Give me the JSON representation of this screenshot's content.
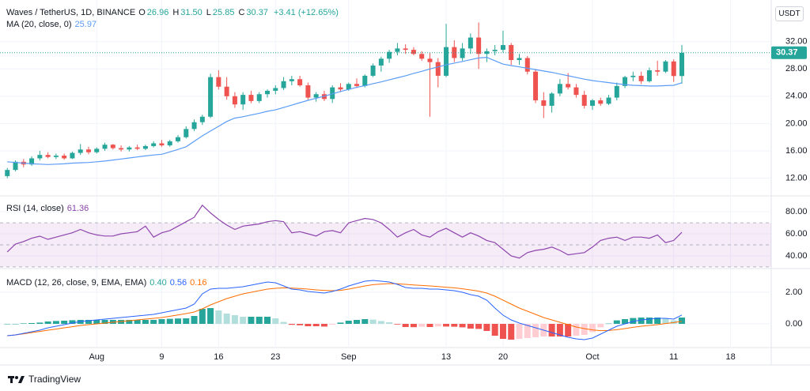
{
  "toolbar": {
    "currency": "USDT"
  },
  "footer": {
    "brand": "TradingView"
  },
  "chart_data": [
    {
      "type": "candlestick",
      "title": "Waves / TetherUS, 1D, BINANCE",
      "ohlc": [
        {
          "key": "O",
          "value": "26.96"
        },
        {
          "key": "H",
          "value": "31.50"
        },
        {
          "key": "L",
          "value": "25.85"
        },
        {
          "key": "C",
          "value": "30.37"
        }
      ],
      "change": "+3.41 (+12.65%)",
      "up_color": "#26a69a",
      "down_color": "#ef5350",
      "open": [
        12.3,
        13.2,
        14.4,
        14.0,
        14.9,
        15.4,
        15.1,
        15.3,
        14.9,
        15.7,
        16.2,
        15.8,
        16.3,
        16.9,
        16.4,
        16.2,
        16.5,
        16.3,
        16.7,
        17.1,
        16.8,
        17.4,
        18.0,
        19.2,
        20.2,
        21.0,
        26.8,
        25.4,
        24.0,
        22.8,
        24.2,
        23.3,
        24.3,
        24.8,
        25.2,
        26.2,
        26.5,
        25.6,
        23.8,
        24.3,
        23.6,
        25.3,
        25.0,
        25.8,
        25.5,
        27.0,
        28.5,
        29.5,
        30.5,
        31.0,
        30.8,
        30.2,
        29.5,
        29.0,
        27.0,
        31.2,
        29.6,
        31.0,
        32.6,
        30.2,
        30.6,
        30.8,
        31.5,
        29.3,
        29.6,
        27.6,
        23.4,
        22.6,
        24.4,
        25.8,
        25.3,
        24.2,
        22.6,
        23.4,
        22.9,
        23.8,
        25.5,
        26.8,
        27.0,
        26.2,
        27.8,
        27.6,
        29.1,
        26.96
      ],
      "high": [
        13.5,
        14.6,
        14.8,
        15.2,
        16.0,
        15.8,
        15.6,
        15.6,
        15.9,
        17.0,
        16.6,
        16.5,
        17.2,
        17.0,
        16.8,
        16.7,
        16.9,
        16.9,
        17.4,
        17.6,
        17.6,
        18.3,
        19.6,
        20.6,
        21.3,
        27.3,
        27.8,
        26.8,
        24.6,
        24.6,
        24.8,
        24.6,
        25.0,
        25.6,
        26.8,
        27.0,
        27.0,
        26.0,
        24.6,
        24.8,
        25.6,
        25.9,
        26.0,
        26.6,
        27.2,
        28.8,
        29.8,
        30.8,
        31.8,
        31.6,
        31.2,
        30.6,
        30.4,
        29.6,
        34.6,
        32.2,
        31.8,
        33.2,
        34.8,
        31.0,
        31.5,
        33.6,
        31.8,
        30.2,
        29.9,
        28.0,
        24.6,
        24.6,
        26.5,
        27.4,
        25.8,
        24.8,
        23.6,
        23.8,
        24.2,
        26.0,
        27.0,
        27.6,
        27.6,
        28.2,
        29.2,
        29.3,
        29.4,
        31.5
      ],
      "low": [
        12.0,
        13.0,
        13.6,
        13.8,
        14.6,
        14.9,
        14.8,
        14.7,
        14.8,
        15.4,
        15.5,
        15.6,
        16.0,
        16.2,
        15.9,
        15.9,
        16.1,
        16.1,
        16.5,
        16.6,
        16.6,
        17.2,
        17.8,
        18.9,
        19.8,
        20.8,
        25.0,
        23.5,
        22.3,
        22.0,
        23.0,
        23.0,
        23.8,
        24.3,
        24.9,
        25.6,
        25.4,
        23.5,
        23.2,
        23.3,
        23.0,
        24.6,
        24.8,
        25.2,
        25.3,
        26.8,
        27.6,
        28.9,
        30.0,
        30.2,
        30.0,
        29.2,
        21.0,
        25.3,
        26.8,
        29.0,
        29.2,
        30.2,
        28.0,
        29.0,
        30.0,
        30.4,
        28.6,
        28.6,
        27.2,
        23.0,
        20.8,
        21.6,
        24.0,
        25.0,
        23.8,
        22.2,
        22.0,
        22.6,
        22.7,
        23.4,
        25.2,
        26.2,
        25.8,
        26.0,
        27.0,
        27.4,
        26.1,
        25.85
      ],
      "close": [
        13.2,
        14.4,
        14.0,
        14.9,
        15.4,
        15.1,
        15.3,
        14.9,
        15.7,
        16.2,
        15.8,
        16.3,
        16.9,
        16.4,
        16.2,
        16.5,
        16.3,
        16.7,
        17.1,
        16.8,
        17.4,
        18.0,
        19.2,
        20.2,
        21.0,
        26.8,
        25.4,
        24.0,
        22.8,
        24.2,
        23.3,
        24.3,
        24.8,
        25.2,
        26.2,
        26.5,
        25.6,
        23.8,
        24.3,
        23.6,
        25.3,
        25.0,
        25.8,
        25.5,
        27.0,
        28.5,
        29.5,
        30.5,
        31.0,
        30.8,
        30.2,
        29.5,
        29.0,
        27.0,
        31.2,
        29.6,
        31.0,
        32.6,
        30.2,
        30.6,
        30.8,
        31.5,
        29.3,
        29.6,
        27.6,
        23.4,
        22.6,
        24.4,
        25.8,
        25.3,
        24.2,
        22.6,
        23.4,
        22.9,
        23.8,
        25.5,
        26.8,
        27.0,
        26.2,
        27.8,
        27.6,
        29.1,
        26.96,
        30.37
      ],
      "ma": {
        "label": "MA (20, close, 0)",
        "value_label": "25.97",
        "color": "#5b9cf6",
        "values": [
          14.4,
          14.3,
          14.2,
          14.1,
          14.05,
          14.0,
          14.05,
          14.1,
          14.2,
          14.25,
          14.3,
          14.4,
          14.5,
          14.65,
          14.8,
          14.95,
          15.1,
          15.25,
          15.4,
          15.5,
          15.85,
          16.2,
          16.6,
          17.4,
          18.2,
          18.9,
          19.6,
          20.3,
          20.8,
          21.0,
          21.25,
          21.5,
          21.8,
          22.0,
          22.35,
          22.7,
          23.05,
          23.4,
          23.7,
          24.0,
          24.35,
          24.7,
          25.0,
          25.3,
          25.55,
          25.85,
          26.1,
          26.4,
          26.7,
          27.0,
          27.35,
          27.65,
          28.0,
          28.3,
          28.6,
          28.85,
          29.1,
          29.35,
          29.6,
          29.7,
          29.2,
          28.7,
          28.5,
          28.3,
          28.1,
          27.9,
          27.7,
          27.5,
          27.25,
          27.0,
          26.75,
          26.5,
          26.3,
          26.15,
          26.0,
          25.85,
          25.7,
          25.6,
          25.55,
          25.5,
          25.5,
          25.55,
          25.6,
          25.97
        ]
      },
      "last_price": {
        "value": 30.37,
        "label": "30.37"
      },
      "ylim": [
        9.4,
        38.1
      ],
      "yticks": [
        {
          "value": 12,
          "label": "12.00"
        },
        {
          "value": 16,
          "label": "16.00"
        },
        {
          "value": 20,
          "label": "20.00"
        },
        {
          "value": 24,
          "label": "24.00"
        },
        {
          "value": 28,
          "label": "28.00"
        },
        {
          "value": 32,
          "label": "32.00"
        }
      ],
      "xlim": [
        -0.9,
        94
      ],
      "xticks": [
        {
          "value": 11,
          "label": "Aug"
        },
        {
          "value": 19,
          "label": "9"
        },
        {
          "value": 26,
          "label": "16"
        },
        {
          "value": 33,
          "label": "23"
        },
        {
          "value": 42,
          "label": "Sep"
        },
        {
          "value": 54,
          "label": "13"
        },
        {
          "value": 61,
          "label": "20"
        },
        {
          "value": 72,
          "label": "Oct"
        },
        {
          "value": 82,
          "label": "11"
        },
        {
          "value": 89,
          "label": "18"
        }
      ]
    },
    {
      "type": "line",
      "title": "RSI (14, close)",
      "value_label": "61.36",
      "color": "#8e44ad",
      "band": [
        30,
        70
      ],
      "midline": 50,
      "band_color": "#9c27b0",
      "values": [
        43.6,
        50.7,
        53,
        56,
        57.9,
        55,
        57,
        59,
        61,
        64,
        61,
        59,
        58,
        58,
        60,
        61,
        62,
        67,
        57,
        61,
        63,
        67,
        71,
        75,
        86,
        79,
        73,
        68,
        64,
        67,
        68,
        69,
        71,
        72,
        71,
        61,
        62,
        60,
        58,
        62,
        63,
        61,
        70,
        72,
        74,
        73,
        70,
        64,
        57,
        61,
        64,
        59,
        57,
        62,
        65,
        61,
        57,
        61,
        58,
        54,
        52,
        46,
        40,
        38,
        43,
        45,
        46,
        48,
        45,
        41,
        42,
        43,
        48,
        54,
        56,
        57,
        54,
        57,
        57,
        56,
        59,
        52,
        54,
        61.36
      ],
      "ylim": [
        28.5,
        93
      ],
      "yticks": [
        {
          "value": 40,
          "label": "40.00"
        },
        {
          "value": 60,
          "label": "60.00"
        },
        {
          "value": 80,
          "label": "80.00"
        }
      ]
    },
    {
      "type": "macd",
      "title": "MACD (12, 26, close, 9, EMA, EMA)",
      "histogram": {
        "value_label": "0.40",
        "color": "#26a69a",
        "colors": [
          "#26a69a",
          "#b2dfdb",
          "#ffcdd2",
          "#ef5350"
        ],
        "values": [
          0,
          0,
          0.03,
          0.05,
          0.08,
          0.15,
          0.18,
          0.2,
          0.23,
          0.25,
          0.25,
          0.25,
          0.25,
          0.25,
          0.25,
          0.25,
          0.25,
          0.25,
          0.25,
          0.3,
          0.32,
          0.34,
          0.35,
          0.5,
          0.95,
          1.0,
          0.85,
          0.65,
          0.55,
          0.45,
          0.45,
          0.45,
          0.45,
          0.35,
          0.12,
          -0.06,
          -0.09,
          -0.15,
          -0.15,
          -0.17,
          -0.05,
          0.08,
          0.2,
          0.25,
          0.3,
          0.27,
          0.18,
          0.1,
          -0.04,
          -0.2,
          -0.21,
          -0.18,
          -0.2,
          -0.16,
          -0.17,
          -0.18,
          -0.22,
          -0.3,
          -0.32,
          -0.45,
          -0.75,
          -0.95,
          -1.0,
          -0.95,
          -0.9,
          -0.85,
          -0.8,
          -0.8,
          -0.8,
          -0.8,
          -0.75,
          -0.7,
          -0.52,
          -0.22,
          0.02,
          0.22,
          0.3,
          0.37,
          0.4,
          0.4,
          0.4,
          0.33,
          0.22,
          0.4
        ]
      },
      "macd": {
        "value_label": "0.56",
        "color": "#2962ff",
        "values": [
          -0.75,
          -0.7,
          -0.6,
          -0.5,
          -0.4,
          -0.25,
          -0.15,
          -0.05,
          0.05,
          0.15,
          0.2,
          0.25,
          0.3,
          0.35,
          0.4,
          0.45,
          0.5,
          0.55,
          0.6,
          0.7,
          0.8,
          0.9,
          1.0,
          1.25,
          1.9,
          2.2,
          2.25,
          2.25,
          2.3,
          2.35,
          2.45,
          2.55,
          2.65,
          2.6,
          2.4,
          2.2,
          2.15,
          2.05,
          2.0,
          1.95,
          2.05,
          2.2,
          2.4,
          2.55,
          2.7,
          2.75,
          2.7,
          2.65,
          2.5,
          2.3,
          2.25,
          2.25,
          2.2,
          2.2,
          2.15,
          2.1,
          2.0,
          1.85,
          1.75,
          1.5,
          1.0,
          0.55,
          0.25,
          0.05,
          -0.1,
          -0.25,
          -0.4,
          -0.55,
          -0.7,
          -0.85,
          -0.95,
          -1.0,
          -0.9,
          -0.65,
          -0.4,
          -0.15,
          0.0,
          0.15,
          0.25,
          0.3,
          0.35,
          0.35,
          0.3,
          0.56
        ]
      },
      "signal": {
        "value_label": "0.16",
        "color": "#ff6d00",
        "values": [
          -0.75,
          -0.7,
          -0.63,
          -0.55,
          -0.48,
          -0.4,
          -0.33,
          -0.25,
          -0.18,
          -0.1,
          -0.05,
          0.0,
          0.05,
          0.1,
          0.15,
          0.2,
          0.25,
          0.3,
          0.35,
          0.4,
          0.48,
          0.56,
          0.65,
          0.75,
          0.95,
          1.2,
          1.4,
          1.6,
          1.75,
          1.9,
          2.0,
          2.1,
          2.2,
          2.25,
          2.28,
          2.26,
          2.24,
          2.2,
          2.15,
          2.12,
          2.1,
          2.12,
          2.2,
          2.3,
          2.4,
          2.48,
          2.52,
          2.55,
          2.54,
          2.5,
          2.46,
          2.43,
          2.4,
          2.36,
          2.32,
          2.28,
          2.22,
          2.15,
          2.07,
          1.95,
          1.75,
          1.5,
          1.25,
          1.0,
          0.8,
          0.6,
          0.4,
          0.25,
          0.1,
          -0.05,
          -0.2,
          -0.3,
          -0.38,
          -0.43,
          -0.42,
          -0.37,
          -0.3,
          -0.22,
          -0.15,
          -0.1,
          -0.05,
          0.02,
          0.08,
          0.16
        ]
      },
      "ylim": [
        -1.5,
        3.4
      ],
      "yticks": [
        {
          "value": 0,
          "label": "0.00"
        },
        {
          "value": 2,
          "label": "2.00"
        }
      ]
    }
  ]
}
